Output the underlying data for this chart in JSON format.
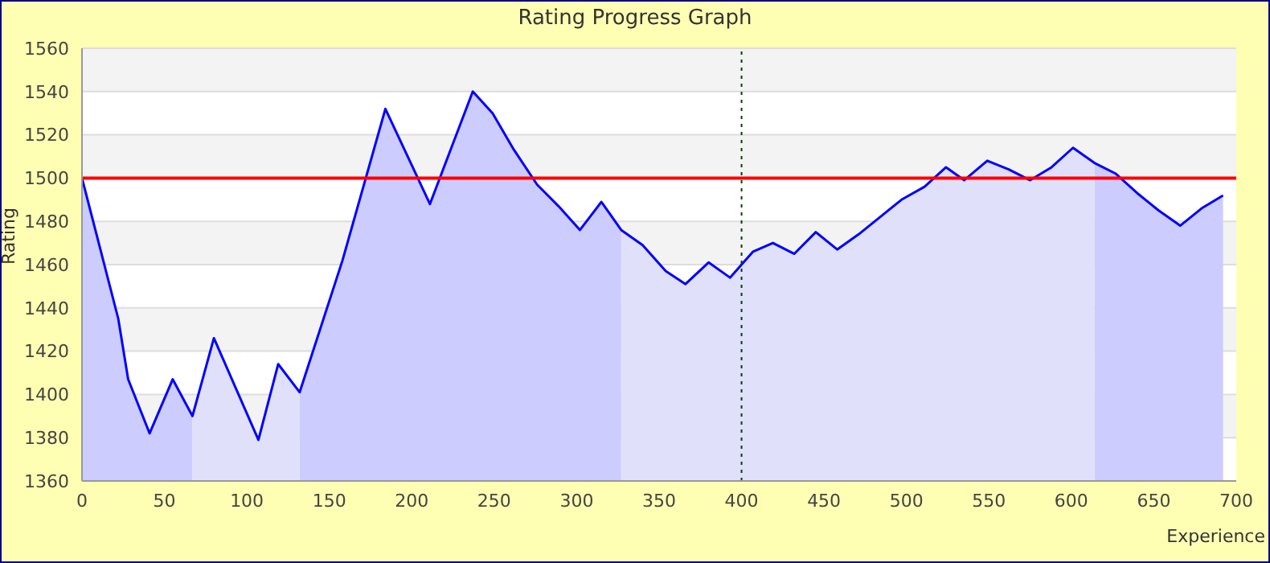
{
  "chart_data": {
    "type": "line",
    "title": "Rating Progress Graph",
    "xlabel": "Experience",
    "ylabel": "Rating",
    "x": [
      0,
      22,
      28,
      41,
      55,
      67,
      80,
      107,
      119,
      132,
      158,
      184,
      211,
      237,
      249,
      262,
      276,
      289,
      302,
      315,
      327,
      340,
      354,
      366,
      380,
      393,
      407,
      419,
      432,
      445,
      458,
      471,
      484,
      497,
      511,
      524,
      535,
      549,
      562,
      575,
      588,
      601,
      614,
      627,
      640,
      653,
      666,
      679,
      692
    ],
    "series": [
      {
        "color": "#0000ff",
        "values": [
          1500,
          1435,
          1407,
          1382,
          1407,
          1390,
          1426,
          1379,
          1414,
          1401,
          1462,
          1532,
          1488,
          1540,
          1530,
          1513,
          1497,
          1487,
          1476,
          1489,
          1476,
          1469,
          1457,
          1451,
          1461,
          1454,
          1466,
          1470,
          1465,
          1475,
          1467,
          1474,
          1482,
          1490,
          1496,
          1505,
          1499,
          1508,
          1504,
          1499,
          1505,
          1514,
          1507,
          1502,
          1493,
          1485,
          1478,
          1486,
          1492
        ]
      },
      {
        "type": "area",
        "color": "#ccccff",
        "values": [
          1500,
          1435,
          1407,
          1382,
          1407,
          1390,
          null,
          null,
          null,
          1401,
          1462,
          1532,
          1488,
          1540,
          1530,
          1513,
          1497,
          1487,
          1476,
          1489,
          1476,
          null,
          null,
          null,
          null,
          null,
          null,
          null,
          null,
          null,
          null,
          null,
          null,
          null,
          null,
          null,
          null,
          null,
          null,
          null,
          null,
          null,
          1507,
          1502,
          1493,
          1485,
          1478,
          1486,
          1492
        ]
      },
      {
        "type": "area",
        "color": "#e0e0fa",
        "values": [
          null,
          null,
          null,
          null,
          null,
          1390,
          1426,
          1379,
          1414,
          1401,
          null,
          null,
          null,
          null,
          null,
          null,
          null,
          null,
          null,
          null,
          1476,
          1469,
          1457,
          1451,
          1461,
          1454,
          1466,
          1470,
          1465,
          1475,
          1467,
          1474,
          1482,
          1490,
          1496,
          1505,
          1499,
          1508,
          1504,
          1499,
          1505,
          1514,
          1507,
          null,
          null,
          null,
          null,
          null,
          null
        ]
      }
    ],
    "xlim": [
      0,
      700
    ],
    "xticks": [
      0,
      50,
      100,
      150,
      200,
      250,
      300,
      350,
      400,
      450,
      500,
      550,
      600,
      650,
      700
    ],
    "ylim": [
      1360,
      1560
    ],
    "yticks": [
      1360,
      1380,
      1400,
      1420,
      1440,
      1460,
      1480,
      1500,
      1520,
      1540,
      1560
    ],
    "grid": "y",
    "marker": "none",
    "ref_lines": [
      {
        "axis": "y",
        "value": 1500,
        "color": "#ff0000",
        "line_style": "solid"
      },
      {
        "axis": "x",
        "value": 400,
        "color": "#004000",
        "line_style": "dotted"
      }
    ]
  }
}
